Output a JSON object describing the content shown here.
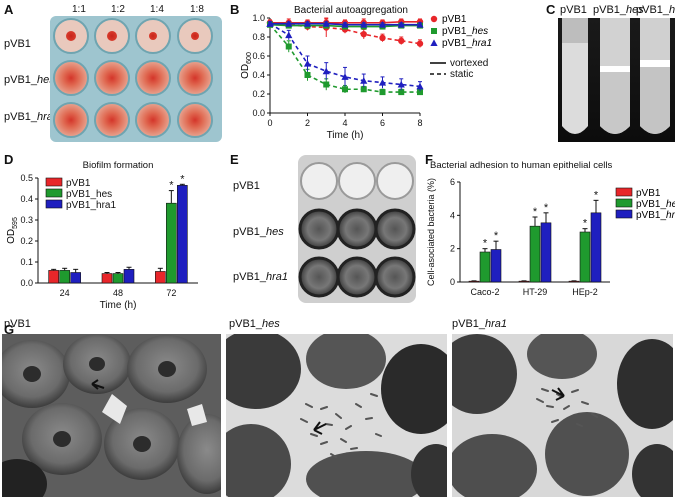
{
  "panels": {
    "A": {
      "label": "A",
      "dilutions": [
        "1:1",
        "1:2",
        "1:4",
        "1:8"
      ],
      "rows": [
        {
          "prefix": "pVB1",
          "suffix": ""
        },
        {
          "prefix": "pVB1_",
          "suffix": "hes"
        },
        {
          "prefix": "pVB1_",
          "suffix": "hra1"
        }
      ]
    },
    "B": {
      "label": "B"
    },
    "C": {
      "label": "C",
      "tubes": [
        {
          "prefix": "pVB1",
          "suffix": ""
        },
        {
          "prefix": "pVB1_",
          "suffix": "hes"
        },
        {
          "prefix": "pVB1_",
          "suffix": "hra1"
        }
      ]
    },
    "D": {
      "label": "D"
    },
    "E": {
      "label": "E",
      "rows": [
        {
          "prefix": "pVB1",
          "suffix": ""
        },
        {
          "prefix": "pVB1_",
          "suffix": "hes"
        },
        {
          "prefix": "pVB1_",
          "suffix": "hra1"
        }
      ]
    },
    "F": {
      "label": "F"
    },
    "G": {
      "label": "G",
      "images": [
        {
          "prefix": "pVB1",
          "suffix": ""
        },
        {
          "prefix": "pVB1_",
          "suffix": "hes"
        },
        {
          "prefix": "pVB1_",
          "suffix": "hra1"
        }
      ]
    }
  },
  "colors": {
    "pVB1": "#e8262a",
    "hes": "#1f9a2e",
    "hra1": "#1f1fbf"
  },
  "chart_data": [
    {
      "id": "B",
      "type": "line",
      "title": "Bacterial autoaggregation",
      "xlabel": "Time (h)",
      "ylabel_main": "OD",
      "ylabel_sub": "600",
      "xlim": [
        0,
        8
      ],
      "ylim": [
        0,
        1.0
      ],
      "xticks": [
        "0",
        "2",
        "4",
        "6",
        "8"
      ],
      "yticks": [
        "0.0",
        "0.2",
        "0.4",
        "0.6",
        "0.8",
        "1.0"
      ],
      "legend": [
        {
          "prefix": "pVB1",
          "suffix": "",
          "marker": "circle",
          "color": "#e8262a"
        },
        {
          "prefix": "pVB1_",
          "suffix": "hes",
          "marker": "square",
          "color": "#1f9a2e"
        },
        {
          "prefix": "pVB1_",
          "suffix": "hra1",
          "marker": "triangle",
          "color": "#1f1fbf"
        }
      ],
      "line_legend": [
        {
          "label": "vortexed",
          "style": "solid"
        },
        {
          "label": "static",
          "style": "dashed"
        }
      ],
      "x": [
        0,
        1,
        2,
        3,
        4,
        5,
        6,
        7,
        8
      ],
      "series": [
        {
          "name": "pVB1 vortexed",
          "marker": "circle",
          "color": "#e8262a",
          "style": "solid",
          "values": [
            0.95,
            0.95,
            0.95,
            0.95,
            0.95,
            0.95,
            0.95,
            0.96,
            0.96
          ],
          "err": [
            0.03,
            0.04,
            0.03,
            0.04,
            0.03,
            0.04,
            0.03,
            0.03,
            0.03
          ]
        },
        {
          "name": "pVB1 static",
          "marker": "circle",
          "color": "#e8262a",
          "style": "dashed",
          "values": [
            0.95,
            0.93,
            0.91,
            0.9,
            0.88,
            0.83,
            0.79,
            0.76,
            0.73
          ],
          "err": [
            0.03,
            0.04,
            0.04,
            0.1,
            0.04,
            0.05,
            0.04,
            0.04,
            0.04
          ]
        },
        {
          "name": "pVB1_hes vortexed",
          "marker": "square",
          "color": "#1f9a2e",
          "style": "solid",
          "values": [
            0.93,
            0.92,
            0.92,
            0.92,
            0.91,
            0.91,
            0.91,
            0.92,
            0.92
          ],
          "err": [
            0.02,
            0.02,
            0.02,
            0.02,
            0.02,
            0.02,
            0.02,
            0.02,
            0.02
          ]
        },
        {
          "name": "pVB1_hes static",
          "marker": "square",
          "color": "#1f9a2e",
          "style": "dashed",
          "values": [
            0.93,
            0.7,
            0.4,
            0.3,
            0.25,
            0.25,
            0.22,
            0.22,
            0.22
          ],
          "err": [
            0.02,
            0.06,
            0.06,
            0.06,
            0.04,
            0.03,
            0.03,
            0.03,
            0.03
          ]
        },
        {
          "name": "pVB1_hra1 vortexed",
          "marker": "triangle",
          "color": "#1f1fbf",
          "style": "solid",
          "values": [
            0.94,
            0.94,
            0.94,
            0.94,
            0.93,
            0.93,
            0.93,
            0.93,
            0.93
          ],
          "err": [
            0.02,
            0.02,
            0.02,
            0.02,
            0.02,
            0.02,
            0.02,
            0.02,
            0.02
          ]
        },
        {
          "name": "pVB1_hra1 static",
          "marker": "triangle",
          "color": "#1f1fbf",
          "style": "dashed",
          "values": [
            0.94,
            0.82,
            0.52,
            0.44,
            0.38,
            0.34,
            0.32,
            0.3,
            0.28
          ],
          "err": [
            0.02,
            0.05,
            0.08,
            0.09,
            0.1,
            0.07,
            0.06,
            0.06,
            0.05
          ]
        }
      ]
    },
    {
      "id": "D",
      "type": "bar",
      "title": "Biofilm formation",
      "xlabel": "Time (h)",
      "ylabel_main": "OD",
      "ylabel_sub": "595",
      "categories": [
        "24",
        "48",
        "72"
      ],
      "ylim": [
        0,
        0.5
      ],
      "yticks": [
        "0.0",
        "0.1",
        "0.2",
        "0.3",
        "0.4",
        "0.5"
      ],
      "series": [
        {
          "name": "pVB1",
          "color": "#e8262a",
          "values": [
            0.06,
            0.045,
            0.055
          ],
          "err": [
            0.005,
            0.005,
            0.015
          ],
          "star": [
            false,
            false,
            false
          ]
        },
        {
          "name": "pVB1_hes",
          "color": "#1f9a2e",
          "values": [
            0.06,
            0.045,
            0.38
          ],
          "err": [
            0.01,
            0.005,
            0.06
          ],
          "star": [
            false,
            false,
            true
          ]
        },
        {
          "name": "pVB1_hra1",
          "color": "#1f1fbf",
          "values": [
            0.05,
            0.065,
            0.465
          ],
          "err": [
            0.015,
            0.01,
            0.005
          ],
          "star": [
            false,
            false,
            true
          ]
        }
      ],
      "star_symbol": "*"
    },
    {
      "id": "F",
      "type": "bar",
      "title": "Bacterial adhesion to human epithelial cells",
      "ylabel": "Cell-asociated bacteria (%)",
      "categories": [
        "Caco-2",
        "HT-29",
        "HEp-2"
      ],
      "ylim": [
        0,
        6
      ],
      "yticks": [
        "0",
        "2",
        "4",
        "6"
      ],
      "legend": [
        {
          "prefix": "pVB1",
          "suffix": "",
          "color": "#e8262a"
        },
        {
          "prefix": "pVB1_",
          "suffix": "hes",
          "color": "#1f9a2e"
        },
        {
          "prefix": "pVB1_",
          "suffix": "hra1",
          "color": "#1f1fbf"
        }
      ],
      "series": [
        {
          "name": "pVB1",
          "color": "#e8262a",
          "values": [
            0.05,
            0.05,
            0.05
          ],
          "err": [
            0.02,
            0.02,
            0.02
          ],
          "star": [
            false,
            false,
            false
          ]
        },
        {
          "name": "pVB1_hes",
          "color": "#1f9a2e",
          "values": [
            1.8,
            3.35,
            3.0
          ],
          "err": [
            0.2,
            0.55,
            0.2
          ],
          "star": [
            true,
            true,
            true
          ]
        },
        {
          "name": "pVB1_hra1",
          "color": "#1f1fbf",
          "values": [
            1.95,
            3.55,
            4.15
          ],
          "err": [
            0.5,
            0.6,
            0.75
          ],
          "star": [
            true,
            true,
            true
          ]
        }
      ],
      "star_symbol": "*"
    }
  ]
}
